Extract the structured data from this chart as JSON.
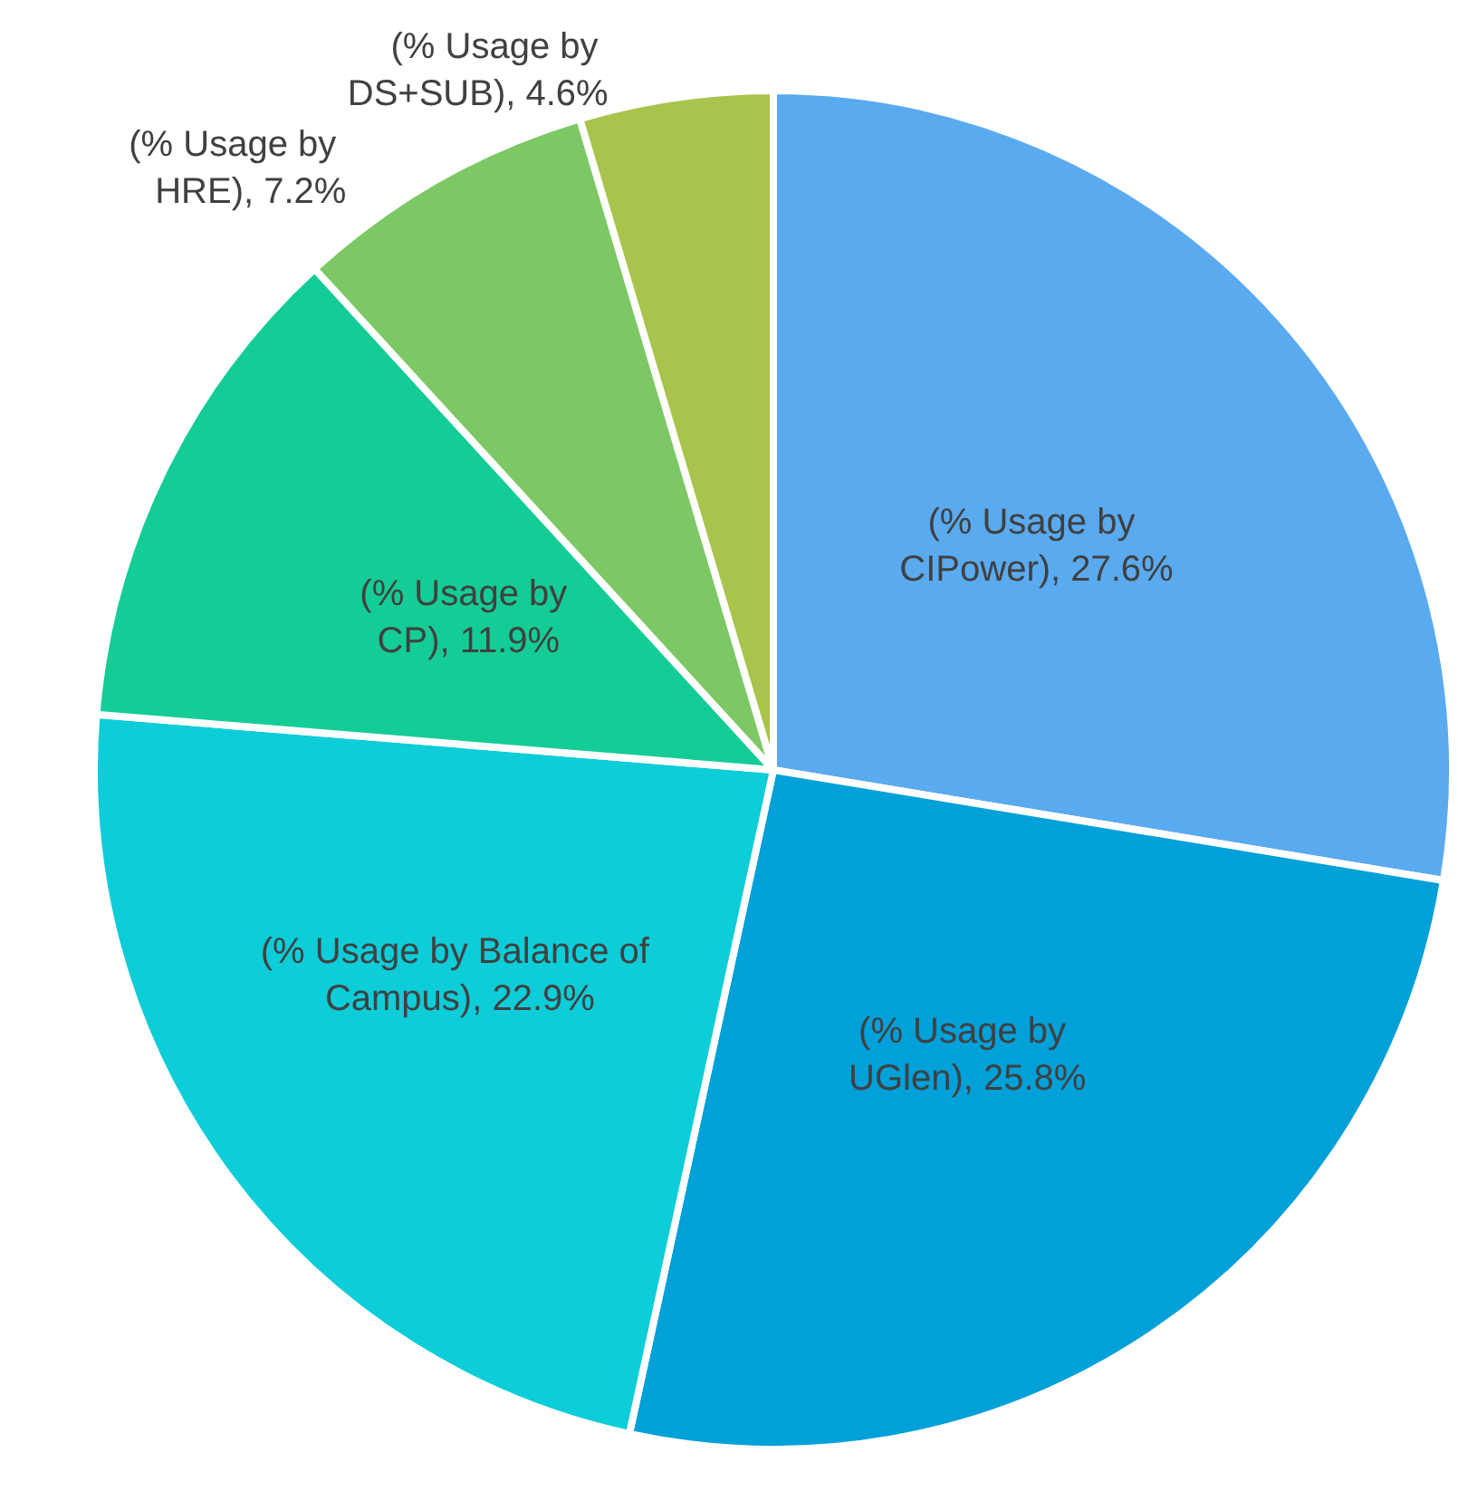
{
  "chart_data": {
    "type": "pie",
    "categories": [
      "(% Usage by CIPower)",
      "(% Usage by UGlen)",
      "(% Usage by Balance of Campus)",
      "(% Usage by CP)",
      "(% Usage by HRE)",
      "(% Usage by DS+SUB)"
    ],
    "values": [
      27.6,
      25.8,
      22.9,
      11.9,
      7.2,
      4.6
    ],
    "value_labels": [
      "27.6%",
      "25.8%",
      "22.9%",
      "11.9%",
      "7.2%",
      "4.6%"
    ],
    "colors": [
      "#5aaaf0",
      "#00a0d8",
      "#0ccdd8",
      "#14cc96",
      "#7cc864",
      "#a8c44c"
    ],
    "legend": false
  }
}
